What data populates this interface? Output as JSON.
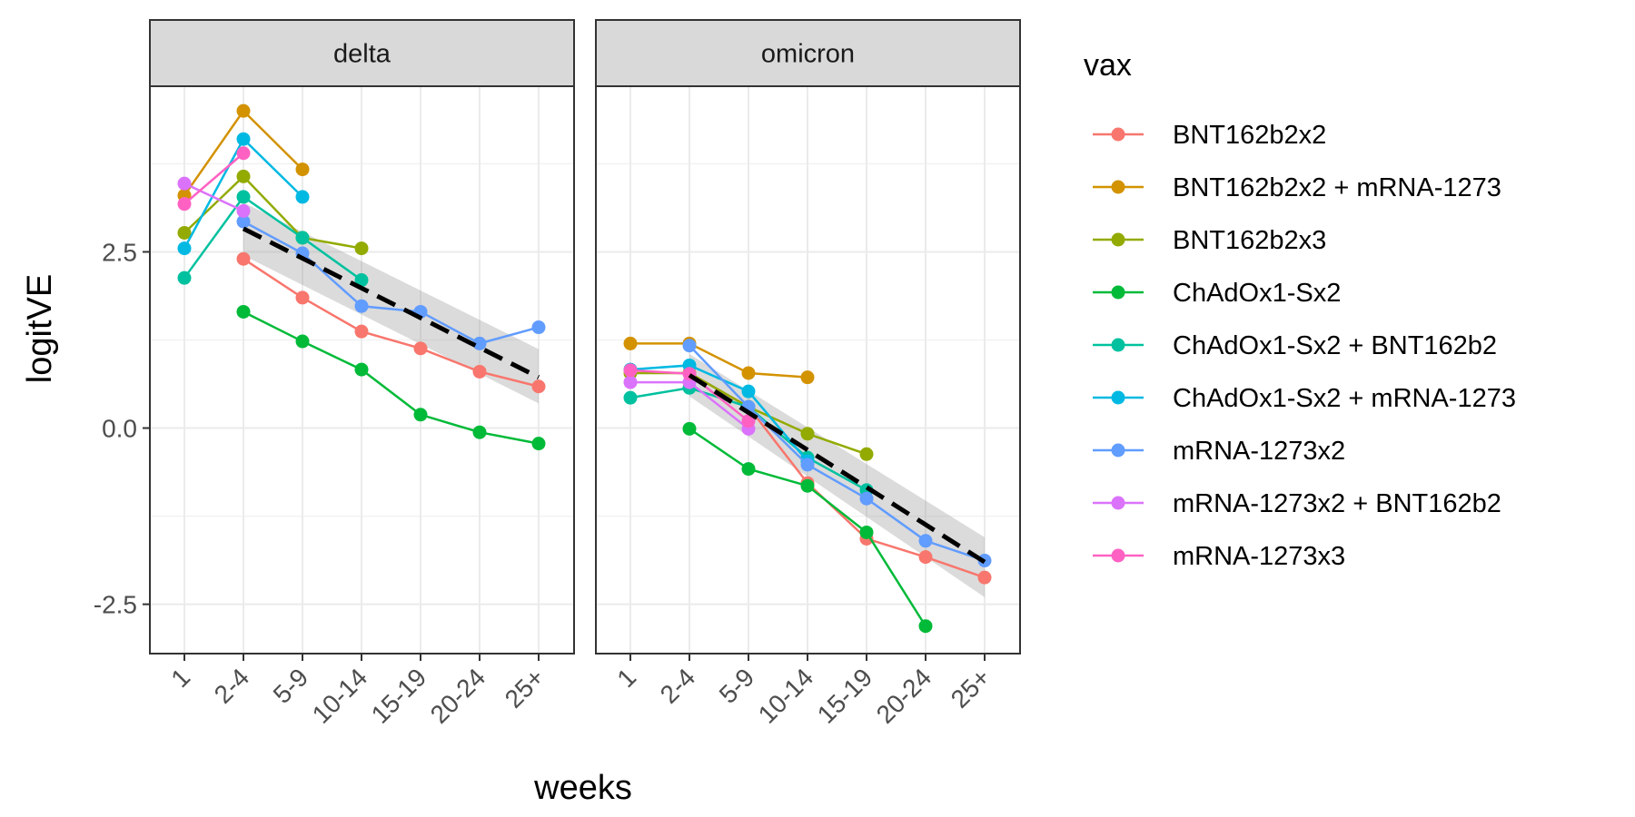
{
  "chart_data": {
    "type": "line",
    "x_categories": [
      "1",
      "2-4",
      "5-9",
      "10-14",
      "15-19",
      "20-24",
      "25+"
    ],
    "xlabel": "weeks",
    "ylabel": "logitVE",
    "ylim": [
      -3.2,
      4.85
    ],
    "y_ticks": [
      2.5,
      0.0,
      -2.5
    ],
    "y_tick_labels": [
      "2.5",
      "0.0",
      "-2.5"
    ],
    "grid": true,
    "legend_title": "vax",
    "legend_position": "right",
    "series_meta": [
      {
        "name": "BNT162b2x2",
        "color": "#F8766D"
      },
      {
        "name": "BNT162b2x2 + mRNA-1273",
        "color": "#D39200"
      },
      {
        "name": "BNT162b2x3",
        "color": "#93AA00"
      },
      {
        "name": "ChAdOx1-Sx2",
        "color": "#00BA38"
      },
      {
        "name": "ChAdOx1-Sx2 + BNT162b2",
        "color": "#00C19F"
      },
      {
        "name": "ChAdOx1-Sx2 + mRNA-1273",
        "color": "#00B9E3"
      },
      {
        "name": "mRNA-1273x2",
        "color": "#619CFF"
      },
      {
        "name": "mRNA-1273x2 + BNT162b2",
        "color": "#DB72FB"
      },
      {
        "name": "mRNA-1273x3",
        "color": "#FF61C3"
      }
    ],
    "panels": [
      {
        "strip": "delta",
        "series": [
          {
            "name": "BNT162b2x2",
            "values": [
              null,
              2.4,
              1.85,
              1.37,
              1.13,
              0.8,
              0.59
            ]
          },
          {
            "name": "BNT162b2x2 + mRNA-1273",
            "values": [
              3.3,
              4.5,
              3.67,
              null,
              null,
              null,
              null
            ]
          },
          {
            "name": "BNT162b2x3",
            "values": [
              2.77,
              3.57,
              2.7,
              2.55,
              null,
              null,
              null
            ]
          },
          {
            "name": "ChAdOx1-Sx2",
            "values": [
              null,
              1.65,
              1.23,
              0.83,
              0.19,
              -0.06,
              -0.22
            ]
          },
          {
            "name": "ChAdOx1-Sx2 + BNT162b2",
            "values": [
              2.13,
              3.28,
              2.7,
              2.1,
              null,
              null,
              null
            ]
          },
          {
            "name": "ChAdOx1-Sx2 + mRNA-1273",
            "values": [
              2.55,
              4.1,
              3.28,
              null,
              null,
              null,
              null
            ]
          },
          {
            "name": "mRNA-1273x2",
            "values": [
              null,
              2.93,
              2.48,
              1.73,
              1.65,
              1.2,
              1.43
            ]
          },
          {
            "name": "mRNA-1273x2 + BNT162b2",
            "values": [
              3.47,
              3.08,
              null,
              null,
              null,
              null,
              null
            ]
          },
          {
            "name": "mRNA-1273x3",
            "values": [
              3.18,
              3.9,
              null,
              null,
              null,
              null,
              null
            ]
          }
        ],
        "trend": {
          "x": [
            "2-4",
            "25+"
          ],
          "y": [
            2.83,
            0.72
          ],
          "ci_lower": [
            2.45,
            0.35
          ],
          "ci_upper": [
            3.2,
            1.12
          ]
        }
      },
      {
        "strip": "omicron",
        "series": [
          {
            "name": "BNT162b2x2",
            "values": [
              null,
              0.78,
              0.3,
              -0.78,
              -1.57,
              -1.83,
              -2.12
            ]
          },
          {
            "name": "BNT162b2x2 + mRNA-1273",
            "values": [
              1.2,
              1.2,
              0.78,
              0.72,
              null,
              null,
              null
            ]
          },
          {
            "name": "BNT162b2x3",
            "values": [
              0.78,
              0.78,
              0.3,
              -0.08,
              -0.37,
              null,
              null
            ]
          },
          {
            "name": "ChAdOx1-Sx2",
            "values": [
              null,
              -0.01,
              -0.58,
              -0.82,
              -1.48,
              -2.81,
              null
            ]
          },
          {
            "name": "ChAdOx1-Sx2 + BNT162b2",
            "values": [
              0.43,
              0.57,
              0.3,
              -0.42,
              -0.88,
              null,
              null
            ]
          },
          {
            "name": "ChAdOx1-Sx2 + mRNA-1273",
            "values": [
              0.83,
              0.89,
              0.52,
              -0.47,
              null,
              null,
              null
            ]
          },
          {
            "name": "mRNA-1273x2",
            "values": [
              null,
              1.17,
              0.3,
              -0.52,
              -1.0,
              -1.6,
              -1.88
            ]
          },
          {
            "name": "mRNA-1273x2 + BNT162b2",
            "values": [
              0.65,
              0.65,
              -0.01,
              null,
              null,
              null,
              null
            ]
          },
          {
            "name": "mRNA-1273x3",
            "values": [
              0.82,
              0.77,
              0.1,
              null,
              null,
              null,
              null
            ]
          }
        ],
        "trend": {
          "x": [
            "2-4",
            "25+"
          ],
          "y": [
            0.75,
            -1.9
          ],
          "ci_lower": [
            0.45,
            -2.4
          ],
          "ci_upper": [
            1.05,
            -1.55
          ]
        }
      }
    ]
  }
}
